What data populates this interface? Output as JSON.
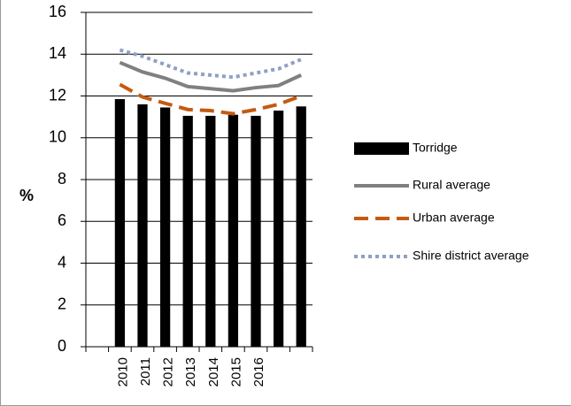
{
  "chart_data": {
    "type": "bar",
    "ylabel": "%",
    "categories": [
      null,
      "2010",
      "2011",
      "2012",
      "2013",
      "2014",
      "2015",
      "2016",
      null,
      null
    ],
    "series": [
      {
        "name": "Torridge",
        "type": "bar",
        "color": "#000000",
        "dash": "solid",
        "values": [
          null,
          11.85,
          11.6,
          11.45,
          11.05,
          11.05,
          11.1,
          11.05,
          11.3,
          11.5
        ]
      },
      {
        "name": "Rural average",
        "type": "line",
        "color": "#808080",
        "dash": "solid",
        "values": [
          null,
          13.6,
          13.15,
          12.85,
          12.45,
          12.35,
          12.25,
          12.4,
          12.5,
          13.0
        ]
      },
      {
        "name": "Urban average",
        "type": "line",
        "color": "#c55a11",
        "dash": "dashed",
        "values": [
          null,
          12.55,
          11.95,
          11.65,
          11.35,
          11.3,
          11.15,
          11.35,
          11.6,
          12.0
        ]
      },
      {
        "name": "Shire district average",
        "type": "line",
        "color": "#8ea0c4",
        "dash": "dotted",
        "values": [
          null,
          14.2,
          13.9,
          13.5,
          13.1,
          13.0,
          12.9,
          13.1,
          13.3,
          13.75
        ]
      }
    ],
    "ylim": [
      0,
      16
    ],
    "yticks": [
      0,
      2,
      4,
      6,
      8,
      10,
      12,
      14,
      16
    ],
    "grid": true,
    "legend": "right"
  }
}
